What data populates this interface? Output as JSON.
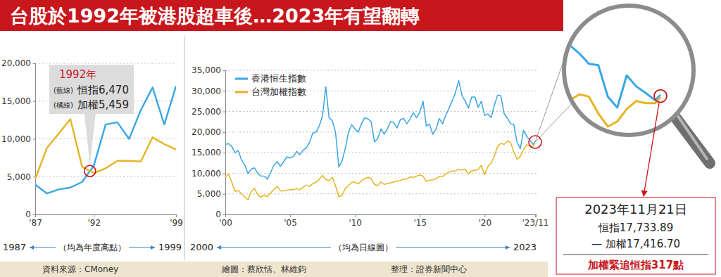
{
  "title": "台股於1992年被港股超車後…2023年有望翻轉",
  "chart_data": [
    {
      "type": "line",
      "x": [
        1987,
        1988,
        1989,
        1990,
        1991,
        1992,
        1993,
        1994,
        1995,
        1996,
        1997,
        1998,
        1999
      ],
      "series": [
        {
          "color": "#3aa6e6",
          "values": [
            3950,
            2770,
            3310,
            3560,
            4300,
            6470,
            11900,
            12200,
            10000,
            13800,
            16800,
            11900,
            17000
          ]
        },
        {
          "color": "#e6b422",
          "values": [
            4700,
            8800,
            10700,
            12600,
            6300,
            5459,
            6100,
            7100,
            7100,
            7000,
            10200,
            9300,
            8600
          ]
        }
      ],
      "xlim": [
        1987,
        1999
      ],
      "xticks": [
        {
          "value": 1987,
          "label": "'87"
        },
        {
          "value": 1992,
          "label": "'92"
        },
        {
          "value": 1999,
          "label": "'99"
        }
      ],
      "ylim": [
        0,
        20000
      ],
      "yticks": [
        0,
        {
          "value": 5000,
          "label": "5,000"
        },
        {
          "value": 10000,
          "label": "10,000"
        },
        {
          "value": 15000,
          "label": "15,000"
        },
        {
          "value": 20000,
          "label": "20,000"
        }
      ],
      "grid": true,
      "annotation": {
        "year": "1992年",
        "blue_tag": "(藍線)",
        "blue_text": "恒指6,470",
        "orange_tag": "(橘線)",
        "orange_text": "加權5,459"
      },
      "x_caption": {
        "start": "1987",
        "label": "（均為年度高點）",
        "end": "1999"
      }
    },
    {
      "type": "line",
      "x": [
        2000,
        2000.25,
        2000.5,
        2000.75,
        2001,
        2001.25,
        2001.5,
        2001.75,
        2002,
        2002.25,
        2002.5,
        2002.75,
        2003,
        2003.25,
        2003.5,
        2003.75,
        2004,
        2004.25,
        2004.5,
        2004.75,
        2005,
        2005.25,
        2005.5,
        2005.75,
        2006,
        2006.25,
        2006.5,
        2006.75,
        2007,
        2007.25,
        2007.5,
        2007.75,
        2008,
        2008.25,
        2008.5,
        2008.75,
        2009,
        2009.25,
        2009.5,
        2009.75,
        2010,
        2010.25,
        2010.5,
        2010.75,
        2011,
        2011.25,
        2011.5,
        2011.75,
        2012,
        2012.25,
        2012.5,
        2012.75,
        2013,
        2013.25,
        2013.5,
        2013.75,
        2014,
        2014.25,
        2014.5,
        2014.75,
        2015,
        2015.25,
        2015.5,
        2015.75,
        2016,
        2016.25,
        2016.5,
        2016.75,
        2017,
        2017.25,
        2017.5,
        2017.75,
        2018,
        2018.25,
        2018.5,
        2018.75,
        2019,
        2019.25,
        2019.5,
        2019.75,
        2020,
        2020.25,
        2020.5,
        2020.75,
        2021,
        2021.25,
        2021.5,
        2021.75,
        2022,
        2022.25,
        2022.5,
        2022.75,
        2023,
        2023.25,
        2023.5,
        2023.75,
        2023.89
      ],
      "series": [
        {
          "name": "香港恒生指數",
          "color": "#3aa6e6",
          "values": [
            17000,
            17200,
            16500,
            15000,
            15500,
            13200,
            12000,
            9900,
            11000,
            11300,
            10000,
            9300,
            9300,
            8600,
            10200,
            12000,
            12800,
            11700,
            12800,
            14000,
            13700,
            14100,
            15300,
            14500,
            15600,
            16200,
            17500,
            19800,
            20000,
            21500,
            24000,
            31000,
            23500,
            22800,
            20000,
            11500,
            13000,
            16000,
            20000,
            21800,
            20700,
            20000,
            22000,
            23500,
            23200,
            22500,
            17600,
            18400,
            20800,
            19500,
            20800,
            22600,
            22300,
            21000,
            23000,
            23300,
            22000,
            23200,
            24700,
            23500,
            24800,
            27500,
            21500,
            21900,
            19500,
            20700,
            23300,
            22000,
            24100,
            25800,
            27600,
            29600,
            32500,
            28900,
            27500,
            25800,
            28500,
            28500,
            26000,
            27500,
            24000,
            24400,
            23500,
            26500,
            29000,
            28800,
            24500,
            23400,
            22000,
            21800,
            17500,
            16000,
            20400,
            18900,
            18000,
            17000,
            17733.89
          ]
        },
        {
          "name": "台灣加權指數",
          "color": "#e6b422",
          "values": [
            9000,
            9800,
            7800,
            5600,
            5800,
            5000,
            4300,
            3500,
            5600,
            6300,
            4800,
            4200,
            4700,
            4300,
            5300,
            6000,
            6800,
            5700,
            5700,
            5900,
            6000,
            6000,
            6300,
            6000,
            6600,
            7100,
            6800,
            7500,
            7800,
            8600,
            9500,
            8500,
            8200,
            9000,
            7000,
            4300,
            4600,
            6300,
            7000,
            7800,
            7800,
            7400,
            8200,
            8700,
            9000,
            8700,
            7300,
            7000,
            7900,
            7300,
            7500,
            7700,
            7900,
            8100,
            8200,
            8600,
            8600,
            9100,
            9000,
            9300,
            9600,
            9300,
            8000,
            8300,
            8400,
            8700,
            9200,
            9200,
            9800,
            10300,
            10500,
            10600,
            10900,
            10800,
            11000,
            9800,
            10600,
            10700,
            10900,
            11900,
            9700,
            11600,
            12500,
            14200,
            16500,
            17300,
            17000,
            17800,
            17500,
            15200,
            13400,
            14100,
            15800,
            16900,
            16600,
            16600,
            17416.7
          ]
        }
      ],
      "xlim": [
        2000,
        2024
      ],
      "xticks": [
        {
          "value": 2000,
          "label": "'00"
        },
        {
          "value": 2005,
          "label": "'05"
        },
        {
          "value": 2010,
          "label": "'10"
        },
        {
          "value": 2015,
          "label": "'15"
        },
        {
          "value": 2020,
          "label": "'20"
        },
        {
          "value": 2023.89,
          "label": "'23/11"
        }
      ],
      "ylim": [
        0,
        35000
      ],
      "yticks": [
        0,
        {
          "value": 5000,
          "label": "5,000"
        },
        {
          "value": 10000,
          "label": "10,000"
        },
        {
          "value": 15000,
          "label": "15,000"
        },
        {
          "value": 20000,
          "label": "20,000"
        },
        {
          "value": 25000,
          "label": "25,000"
        },
        {
          "value": 30000,
          "label": "30,000"
        },
        {
          "value": 35000,
          "label": "35,000"
        }
      ],
      "grid": true,
      "legend": "upper left",
      "x_caption": {
        "start": "2000",
        "label": "（均為日線圖）",
        "end": "2023"
      }
    }
  ],
  "callout": {
    "date": "2023年11月21日",
    "hsi": "恒指17,733.89",
    "taiex": "— 加權17,416.70",
    "note": "加權緊追恒指317點"
  },
  "footer": [
    "資料來源：CMoney",
    "繪圖：蔡欣恬、林維鈞",
    "整理：證券新聞中心"
  ]
}
